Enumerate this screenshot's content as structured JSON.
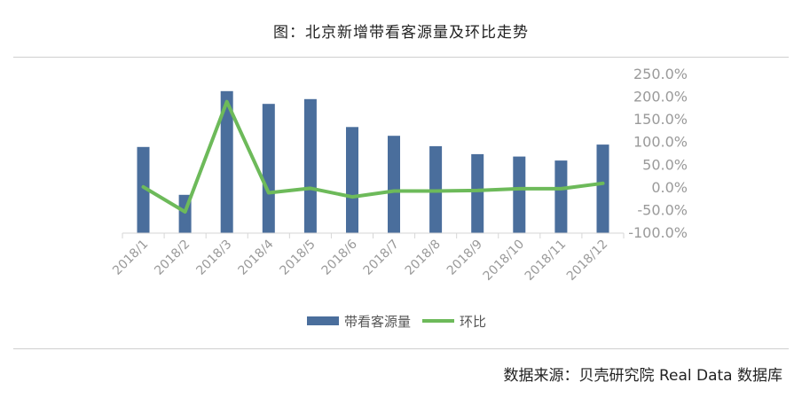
{
  "title": "图：北京新增带看客源量及环比走势",
  "source": "数据来源：贝壳研究院 Real Data 数据库",
  "colors": {
    "bar": "#4a6e9c",
    "line": "#6dba5a",
    "axis": "#d6d6d6",
    "tick": "#9a9a9a"
  },
  "chart_data": {
    "type": "bar",
    "categories": [
      "2018/1",
      "2018/2",
      "2018/3",
      "2018/4",
      "2018/5",
      "2018/6",
      "2018/7",
      "2018/8",
      "2018/9",
      "2018/10",
      "2018/11",
      "2018/12"
    ],
    "series": [
      {
        "name": "带看客源量",
        "type": "bar",
        "axis": "left",
        "values": [
          108,
          48,
          178,
          162,
          168,
          133,
          122,
          109,
          99,
          96,
          91,
          111
        ]
      },
      {
        "name": "环比",
        "type": "line",
        "axis": "right",
        "unit": "%",
        "values": [
          0,
          -55,
          188,
          -13,
          -3,
          -22,
          -9,
          -9,
          -8,
          -4,
          -4,
          8
        ]
      }
    ],
    "y_left_range": [
      0,
      200
    ],
    "y_right_range": [
      -100,
      250
    ],
    "y_right_ticks": [
      "250.0%",
      "200.0%",
      "150.0%",
      "100.0%",
      "50.0%",
      "0.0%",
      "-50.0%",
      "-100.0%"
    ],
    "legend_position": "bottom",
    "grid": false
  }
}
